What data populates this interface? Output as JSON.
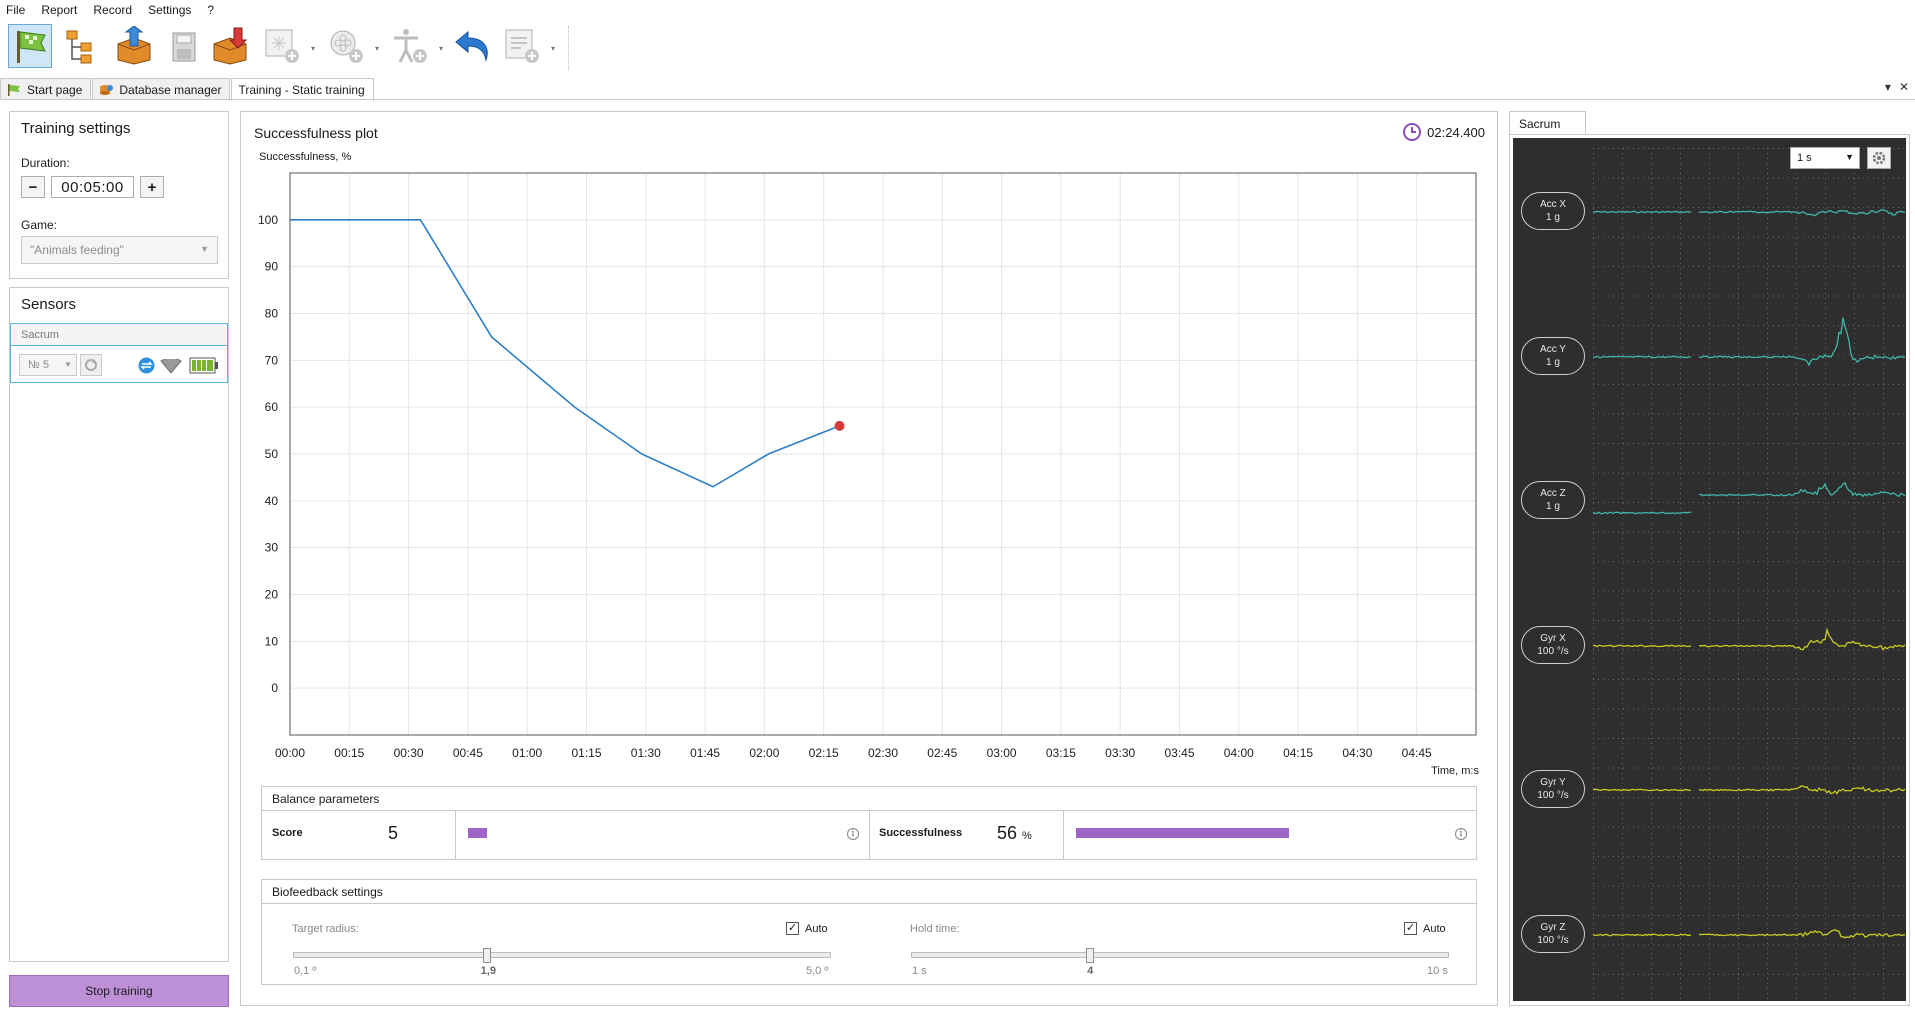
{
  "menu": [
    "File",
    "Report",
    "Record",
    "Settings",
    "?"
  ],
  "toolbar": {
    "buttons": [
      "start-flag",
      "tree",
      "import",
      "save",
      "export",
      "screen-add",
      "flower-add",
      "figure-add",
      "undo",
      "report-add"
    ]
  },
  "tabs": [
    {
      "label": "Start page",
      "active": false
    },
    {
      "label": "Database manager",
      "active": false
    },
    {
      "label": "Training - Static training",
      "active": true
    }
  ],
  "window_controls": {
    "menu": "▾",
    "close": "✕"
  },
  "training_settings": {
    "title": "Training settings",
    "duration_label": "Duration:",
    "duration_value": "00:05:00",
    "minus": "−",
    "plus": "+",
    "game_label": "Game:",
    "game_value": "\"Animals feeding\""
  },
  "sensors": {
    "title": "Sensors",
    "sensor_name": "Sacrum",
    "sensor_number": "№ 5"
  },
  "plot": {
    "title": "Successfulness plot",
    "timer": "02:24.400",
    "ylabel": "Successfulness, %",
    "xlabel": "Time, m:s"
  },
  "chart_data": {
    "type": "line",
    "title": "Successfulness plot",
    "xlabel": "Time, m:s",
    "ylabel": "Successfulness, %",
    "xlim": [
      0,
      300
    ],
    "ylim": [
      -10,
      110
    ],
    "x_ticks": [
      "00:00",
      "00:15",
      "00:30",
      "00:45",
      "01:00",
      "01:15",
      "01:30",
      "01:45",
      "02:00",
      "02:15",
      "02:30",
      "02:45",
      "03:00",
      "03:15",
      "03:30",
      "03:45",
      "04:00",
      "04:15",
      "04:30",
      "04:45"
    ],
    "y_ticks": [
      0,
      10,
      20,
      30,
      40,
      50,
      60,
      70,
      80,
      90,
      100
    ],
    "grid": true,
    "series": [
      {
        "color": "#2f7fc6",
        "x": [
          0,
          33,
          51,
          72,
          89,
          107,
          121,
          139
        ],
        "y": [
          100,
          100,
          75,
          60,
          50,
          43,
          50,
          56
        ]
      }
    ],
    "marker": {
      "x": 139,
      "y": 56,
      "color": "#d63a3a"
    }
  },
  "balance": {
    "title": "Balance parameters",
    "score_label": "Score",
    "score_value": "5",
    "score_fraction": 0.05,
    "succ_label": "Successfulness",
    "succ_value": "56",
    "succ_unit": "%",
    "succ_fraction": 0.56,
    "bar_color": "#a064c8"
  },
  "biofeedback": {
    "title": "Biofeedback settings",
    "target_label": "Target radius:",
    "target_auto": "Auto",
    "target_min": "0,1 º",
    "target_value": "1,9",
    "target_max": "5,0 º",
    "target_fraction": 0.36,
    "hold_label": "Hold time:",
    "hold_auto": "Auto",
    "hold_min": "1 s",
    "hold_value": "4",
    "hold_max": "10 s",
    "hold_fraction": 0.333
  },
  "scope": {
    "tab": "Sacrum",
    "timebase": "1 s",
    "channels": [
      {
        "name": "Acc X",
        "scale": "1 g"
      },
      {
        "name": "Acc Y",
        "scale": "1 g"
      },
      {
        "name": "Acc Z",
        "scale": "1 g"
      },
      {
        "name": "Gyr X",
        "scale": "100 °/s"
      },
      {
        "name": "Gyr Y",
        "scale": "100 °/s"
      },
      {
        "name": "Gyr Z",
        "scale": "100 °/s"
      }
    ],
    "acc_color": "#3fb6a8",
    "gyr_color": "#c6cc1e"
  },
  "stop_button": "Stop training"
}
